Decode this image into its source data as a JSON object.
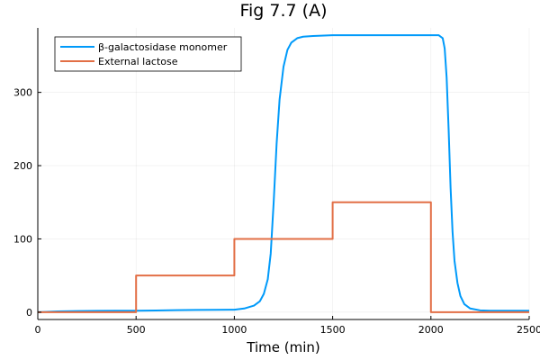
{
  "chart_data": {
    "type": "line",
    "title": "Fig 7.7 (A)",
    "xlabel": "Time (min)",
    "ylabel": "",
    "xlim": [
      0,
      2500
    ],
    "ylim": [
      -10,
      388
    ],
    "xticks": [
      0,
      500,
      1000,
      1500,
      2000,
      2500
    ],
    "yticks": [
      0,
      100,
      200,
      300
    ],
    "grid": true,
    "legend": "top-left",
    "series": [
      {
        "name": "β-galactosidase monomer",
        "color": "#009AFA",
        "x": [
          0,
          100,
          200,
          300,
          400,
          500,
          600,
          700,
          800,
          900,
          1000,
          1050,
          1100,
          1130,
          1150,
          1170,
          1185,
          1200,
          1215,
          1230,
          1250,
          1270,
          1290,
          1320,
          1350,
          1400,
          1500,
          1600,
          1700,
          1800,
          1900,
          2000,
          2040,
          2060,
          2070,
          2080,
          2090,
          2100,
          2110,
          2120,
          2135,
          2150,
          2170,
          2200,
          2250,
          2300,
          2400,
          2500
        ],
        "y": [
          0,
          1,
          1.5,
          1.8,
          2,
          2,
          2.3,
          2.7,
          3,
          3.2,
          3.4,
          5,
          9,
          15,
          25,
          45,
          80,
          150,
          230,
          290,
          335,
          358,
          368,
          374,
          376,
          377,
          378,
          378,
          378,
          378,
          378,
          378,
          378,
          374,
          360,
          320,
          250,
          170,
          110,
          70,
          40,
          22,
          11,
          5,
          2.5,
          2,
          2,
          2
        ]
      },
      {
        "name": "External lactose",
        "color": "#E26F46",
        "x": [
          0,
          500,
          500,
          1000,
          1000,
          1500,
          1500,
          2000,
          2000,
          2500
        ],
        "y": [
          0,
          0,
          50,
          50,
          100,
          100,
          150,
          150,
          0,
          0
        ]
      }
    ]
  }
}
